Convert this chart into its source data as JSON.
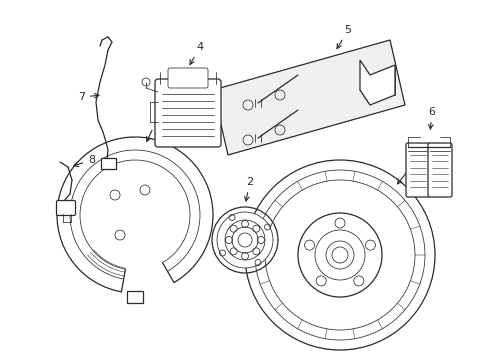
{
  "background_color": "#ffffff",
  "line_color": "#2a2a2a",
  "label_color": "#000000",
  "figsize": [
    4.89,
    3.6
  ],
  "dpi": 100,
  "xlim": [
    0,
    489
  ],
  "ylim": [
    0,
    360
  ]
}
